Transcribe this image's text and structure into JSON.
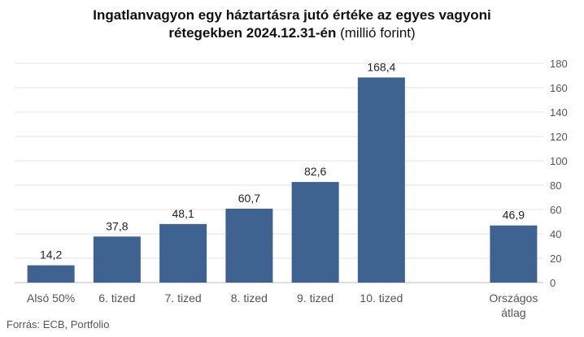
{
  "chart_data": {
    "type": "bar",
    "title_line1": "Ingatlanvagyon egy háztartásra jutó értéke az egyes vagyoni",
    "title_line2_bold": "rétegekben 2024.12.31-én",
    "title_line2_unit": "(millió forint)",
    "categories": [
      "Alsó 50%",
      "6. tized",
      "7. tized",
      "8. tized",
      "9. tized",
      "10. tized",
      "",
      "Országos átlag"
    ],
    "values": [
      14.2,
      37.8,
      48.1,
      60.7,
      82.6,
      168.4,
      null,
      46.9
    ],
    "value_labels": [
      "14,2",
      "37,8",
      "48,1",
      "60,7",
      "82,6",
      "168,4",
      "",
      "46,9"
    ],
    "ylim": [
      0,
      180
    ],
    "yticks": [
      0,
      20,
      40,
      60,
      80,
      100,
      120,
      140,
      160,
      180
    ],
    "yaxis_side": "right",
    "grid": true,
    "bar_color": "#3e6391",
    "source": "Forrás: ECB, Portfolio"
  }
}
